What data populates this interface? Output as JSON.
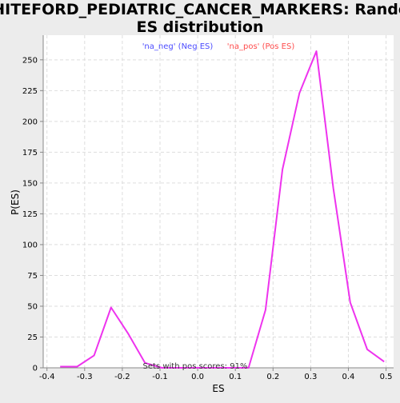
{
  "chart_data": {
    "type": "line",
    "title_lines": [
      "WHITEFORD_PEDIATRIC_CANCER_MARKERS: Random",
      "ES distribution"
    ],
    "xlabel": "ES",
    "ylabel": "P(ES)",
    "xlim": [
      -0.41,
      0.52
    ],
    "ylim": [
      0,
      270
    ],
    "xticks": [
      -0.4,
      -0.3,
      -0.2,
      -0.1,
      0.0,
      0.1,
      0.2,
      0.3,
      0.4,
      0.5
    ],
    "xtick_labels": [
      "-0.4",
      "-0.3",
      "-0.2",
      "-0.1",
      "0.0",
      "0.1",
      "0.2",
      "0.3",
      "0.4",
      "0.5"
    ],
    "yticks": [
      0,
      25,
      50,
      75,
      100,
      125,
      150,
      175,
      200,
      225,
      250
    ],
    "ytick_labels": [
      "0",
      "25",
      "50",
      "75",
      "100",
      "125",
      "150",
      "175",
      "200",
      "225",
      "250"
    ],
    "grid": true,
    "legend": [
      {
        "label": "'na_neg' (Neg ES)",
        "color": "#4c4cff"
      },
      {
        "label": "'na_pos' (Pos ES)",
        "color": "#ff4c4c"
      }
    ],
    "annotation": "Sets with pos scores: 91%",
    "line_color": "#ee33ee",
    "series": [
      {
        "x": [
          -0.365,
          -0.32,
          -0.275,
          -0.23,
          -0.185,
          -0.14,
          -0.095,
          -0.05,
          0.0,
          0.045,
          0.09,
          0.135,
          0.18,
          0.225,
          0.27,
          0.315,
          0.36,
          0.405,
          0.45,
          0.495
        ],
        "values": [
          1,
          1,
          10,
          49,
          28,
          4,
          0,
          0,
          0,
          0,
          0,
          0,
          47,
          161,
          223,
          257,
          146,
          53,
          15,
          5
        ]
      }
    ]
  }
}
